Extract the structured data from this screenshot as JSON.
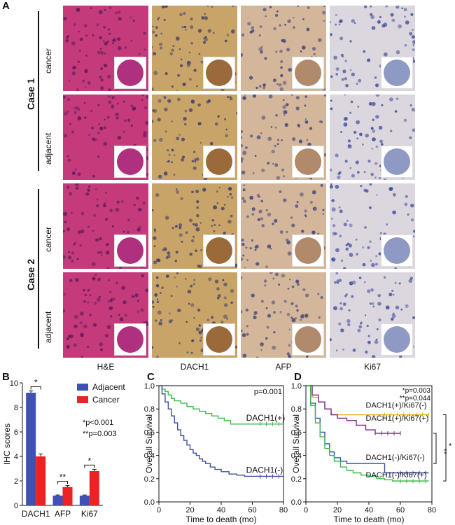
{
  "panel_labels": {
    "a": "A",
    "b": "B",
    "c": "C",
    "d": "D"
  },
  "ihc_grid": {
    "case_labels": [
      "Case 1",
      "Case 2"
    ],
    "row_labels": [
      "cancer",
      "adjacent",
      "cancer",
      "adjacent"
    ],
    "column_labels": [
      "H&E",
      "DACH1",
      "AFP",
      "Ki67"
    ],
    "tile_colors": {
      "he": "#c43a7a",
      "dach1": "#c9a468",
      "afp": "#d4b79a",
      "ki67": "#dcd6de"
    }
  },
  "chart_data": [
    {
      "panel": "B",
      "type": "bar",
      "ylabel": "IHC scores",
      "ylim": [
        0,
        10
      ],
      "yticks": [
        0,
        2,
        4,
        6,
        8,
        10
      ],
      "categories": [
        "DACH1",
        "AFP",
        "Ki67"
      ],
      "series": [
        {
          "name": "Adjacent",
          "color": "#3f51b5",
          "values": [
            9.2,
            0.8,
            0.8
          ],
          "errors": [
            0.15,
            0.05,
            0.05
          ]
        },
        {
          "name": "Cancer",
          "color": "#ee2222",
          "values": [
            4.0,
            1.5,
            2.8
          ],
          "errors": [
            0.2,
            0.12,
            0.15
          ]
        }
      ],
      "significance": [
        "*",
        "**",
        "*"
      ],
      "stats_text": [
        "*p<0.001",
        "**p=0.003"
      ]
    },
    {
      "panel": "C",
      "type": "line",
      "xlabel": "Time to death (mo)",
      "ylabel": "Overall Survival",
      "xlim": [
        0,
        80
      ],
      "ylim": [
        0,
        1.0
      ],
      "xticks": [
        0,
        20,
        40,
        60,
        80
      ],
      "yticks": [
        "0.0",
        "0.2",
        "0.4",
        "0.6",
        "0.8",
        "1.0"
      ],
      "pvalue": "p=0.001",
      "series": [
        {
          "name": "DACH1(+)",
          "color": "#3db84a",
          "x": [
            0,
            2,
            4,
            6,
            8,
            10,
            14,
            18,
            22,
            26,
            30,
            34,
            38,
            42,
            46,
            50,
            55,
            60,
            65,
            70,
            75,
            80
          ],
          "y": [
            1.0,
            0.97,
            0.95,
            0.92,
            0.89,
            0.87,
            0.85,
            0.82,
            0.8,
            0.78,
            0.76,
            0.74,
            0.72,
            0.7,
            0.67,
            0.67,
            0.67,
            0.67,
            0.67,
            0.67,
            0.67,
            0.67
          ]
        },
        {
          "name": "DACH1(-)",
          "color": "#3a4fa3",
          "x": [
            0,
            2,
            4,
            6,
            8,
            10,
            12,
            14,
            16,
            18,
            20,
            22,
            24,
            26,
            28,
            30,
            33,
            36,
            40,
            45,
            50,
            55,
            60,
            65,
            70,
            75,
            80
          ],
          "y": [
            1.0,
            0.93,
            0.86,
            0.8,
            0.74,
            0.68,
            0.62,
            0.57,
            0.53,
            0.49,
            0.45,
            0.42,
            0.4,
            0.37,
            0.35,
            0.33,
            0.3,
            0.28,
            0.26,
            0.24,
            0.23,
            0.22,
            0.22,
            0.22,
            0.22,
            0.22,
            0.22
          ]
        }
      ]
    },
    {
      "panel": "D",
      "type": "line",
      "xlabel": "Time to death (mo)",
      "ylabel": "Overall Survival",
      "xlim": [
        0,
        80
      ],
      "ylim": [
        0,
        1.0
      ],
      "xticks": [
        0,
        20,
        40,
        60,
        80
      ],
      "yticks": [
        "0.0",
        "0.2",
        "0.4",
        "0.6",
        "0.8",
        "1.0"
      ],
      "stats_text": [
        "*p=0.003",
        "**p=0.044"
      ],
      "brackets": [
        "**",
        "*"
      ],
      "series": [
        {
          "name": "DACH1(+)/Ki67(-)",
          "color": "#e6b422",
          "x": [
            0,
            4,
            8,
            12,
            16,
            20,
            30,
            40,
            50,
            60,
            70,
            78
          ],
          "y": [
            1.0,
            0.9,
            0.86,
            0.8,
            0.75,
            0.75,
            0.75,
            0.75,
            0.75,
            0.75,
            0.75,
            0.75
          ]
        },
        {
          "name": "DACH1(+)/Ki67(+)",
          "color": "#7a2a8a",
          "x": [
            0,
            4,
            8,
            12,
            16,
            20,
            26,
            32,
            38,
            44,
            50,
            55,
            60
          ],
          "y": [
            1.0,
            0.92,
            0.86,
            0.8,
            0.75,
            0.72,
            0.7,
            0.66,
            0.62,
            0.59,
            0.59,
            0.59,
            0.59
          ]
        },
        {
          "name": "DACH1(-)/Ki67(-)",
          "color": "#3a4fa3",
          "x": [
            0,
            3,
            6,
            9,
            12,
            15,
            18,
            22,
            26,
            30,
            35,
            40,
            45,
            50,
            55,
            60,
            65,
            70,
            78
          ],
          "y": [
            1.0,
            0.85,
            0.72,
            0.6,
            0.5,
            0.43,
            0.38,
            0.35,
            0.33,
            0.33,
            0.33,
            0.33,
            0.33,
            0.25,
            0.25,
            0.25,
            0.25,
            0.25,
            0.25
          ]
        },
        {
          "name": "DACH1(-)/Ki67(+)",
          "color": "#3db84a",
          "x": [
            0,
            3,
            6,
            9,
            12,
            15,
            18,
            22,
            26,
            30,
            35,
            40,
            45,
            50,
            55,
            60,
            65,
            70,
            78
          ],
          "y": [
            1.0,
            0.83,
            0.68,
            0.56,
            0.46,
            0.4,
            0.35,
            0.3,
            0.27,
            0.25,
            0.23,
            0.22,
            0.2,
            0.19,
            0.18,
            0.18,
            0.18,
            0.18,
            0.18
          ]
        }
      ]
    }
  ]
}
